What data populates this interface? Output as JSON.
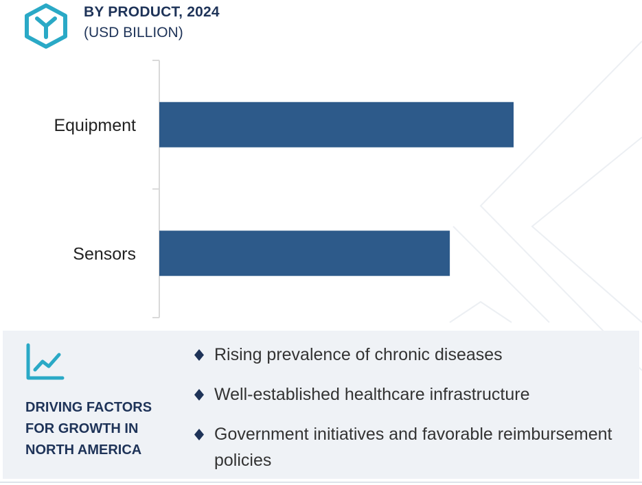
{
  "header": {
    "title": "BY PRODUCT, 2024",
    "subtitle": "(USD BILLION)",
    "logo_icon": "hexagon-y-logo-icon"
  },
  "colors": {
    "bar": "#2d5a8a",
    "title": "#1e3358",
    "accent": "#2aa9c6",
    "panel_bg": "#eff2f6"
  },
  "chart_data": {
    "type": "bar",
    "orientation": "horizontal",
    "categories": [
      "Equipment",
      "Sensors"
    ],
    "values": [
      1.0,
      0.82
    ],
    "xlabel": "",
    "ylabel": "",
    "xlim": [
      0,
      1.0
    ],
    "grid": false,
    "legend": "none"
  },
  "panel": {
    "icon": "trend-chart-icon",
    "title": "DRIVING FACTORS FOR GROWTH IN NORTH AMERICA",
    "bullet_icon": "diamond-bullet-icon",
    "factors": [
      "Rising prevalence of chronic diseases",
      "Well-established healthcare infrastructure",
      "Government initiatives and favorable reimbursement policies"
    ]
  }
}
